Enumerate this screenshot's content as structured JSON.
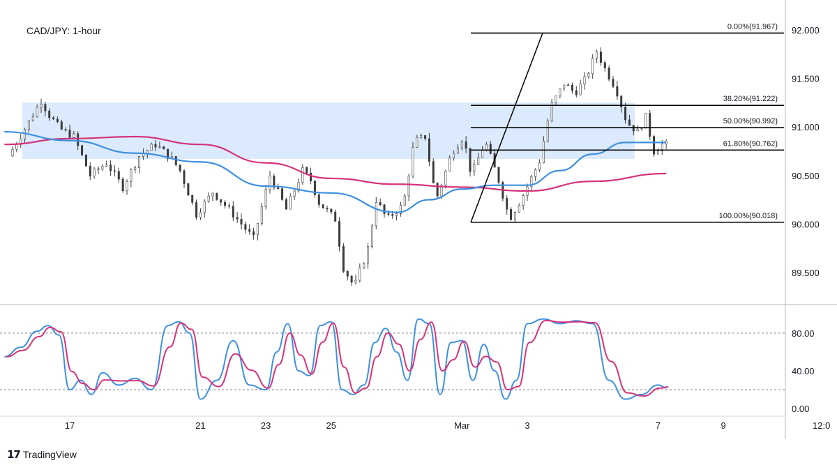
{
  "chart_data": {
    "type": "candlestick",
    "title": "CAD/JPY: 1-hour",
    "price_axis": {
      "ylim": [
        89.17,
        92.25
      ],
      "ticks": [
        92.0,
        91.5,
        91.0,
        90.5,
        90.0,
        89.5
      ],
      "tick_labels": [
        "92.000",
        "91.500",
        "91.000",
        "90.500",
        "90.000",
        "89.500"
      ]
    },
    "oscillator_axis": {
      "ylim": [
        -8,
        108
      ],
      "ticks": [
        80,
        40,
        0
      ],
      "tick_labels": [
        "80.00",
        "40.00",
        "0.00"
      ],
      "dashed_levels": [
        80,
        20
      ]
    },
    "time_axis": {
      "labels": [
        "17",
        "21",
        "23",
        "25",
        "Mar",
        "3",
        "7",
        "9",
        "12:0"
      ],
      "label_dates": [
        "Feb 17",
        "Feb 21",
        "Feb 23",
        "Feb 25",
        "Mar 1",
        "Mar 3",
        "Mar 7",
        "Mar 9",
        "Mar 12"
      ]
    },
    "resistance_zone": {
      "low": 90.67,
      "high": 91.25,
      "color": "#dbeafc"
    },
    "fibonacci": {
      "levels": [
        {
          "label": "0.00%(91.967)",
          "price": 91.967
        },
        {
          "label": "38.20%(91.222)",
          "price": 91.222
        },
        {
          "label": "50.00%(90.992)",
          "price": 90.992
        },
        {
          "label": "61.80%(90.762)",
          "price": 90.762
        },
        {
          "label": "100.00%(90.018)",
          "price": 90.018
        }
      ],
      "swing_low": 90.018,
      "swing_high": 91.967
    },
    "price_path": [
      {
        "date": "Feb 15 06:00",
        "price": 90.7
      },
      {
        "date": "Feb 15 18:00",
        "price": 90.98
      },
      {
        "date": "Feb 16 06:00",
        "price": 91.27
      },
      {
        "date": "Feb 16 12:00",
        "price": 91.12
      },
      {
        "date": "Feb 16 20:00",
        "price": 90.98
      },
      {
        "date": "Feb 17 06:00",
        "price": 90.9
      },
      {
        "date": "Feb 17 18:00",
        "price": 90.5
      },
      {
        "date": "Feb 18 06:00",
        "price": 90.63
      },
      {
        "date": "Feb 18 18:00",
        "price": 90.38
      },
      {
        "date": "Feb 19 06:00",
        "price": 90.7
      },
      {
        "date": "Feb 19 18:00",
        "price": 90.82
      },
      {
        "date": "Feb 20 06:00",
        "price": 90.67
      },
      {
        "date": "Feb 20 12:00",
        "price": 90.55
      },
      {
        "date": "Feb 21 00:00",
        "price": 90.1
      },
      {
        "date": "Feb 21 12:00",
        "price": 90.33
      },
      {
        "date": "Feb 22 00:00",
        "price": 90.15
      },
      {
        "date": "Feb 22 18:00",
        "price": 89.85
      },
      {
        "date": "Feb 23 06:00",
        "price": 90.5
      },
      {
        "date": "Feb 23 18:00",
        "price": 90.15
      },
      {
        "date": "Feb 24 06:00",
        "price": 90.55
      },
      {
        "date": "Feb 24 12:00",
        "price": 90.45
      },
      {
        "date": "Feb 24 18:00",
        "price": 90.22
      },
      {
        "date": "Feb 25 06:00",
        "price": 90.05
      },
      {
        "date": "Feb 25 12:00",
        "price": 89.55
      },
      {
        "date": "Feb 25 20:00",
        "price": 89.35
      },
      {
        "date": "Feb 26 06:00",
        "price": 89.75
      },
      {
        "date": "Feb 26 12:00",
        "price": 90.25
      },
      {
        "date": "Feb 26 20:00",
        "price": 90.05
      },
      {
        "date": "Feb 27 08:00",
        "price": 90.2
      },
      {
        "date": "Feb 27 16:00",
        "price": 90.85
      },
      {
        "date": "Feb 28 00:00",
        "price": 90.9
      },
      {
        "date": "Feb 28 08:00",
        "price": 90.25
      },
      {
        "date": "Feb 28 20:00",
        "price": 90.75
      },
      {
        "date": "Mar 1 04:00",
        "price": 90.9
      },
      {
        "date": "Mar 1 10:00",
        "price": 90.5
      },
      {
        "date": "Mar 1 20:00",
        "price": 90.85
      },
      {
        "date": "Mar 2 06:00",
        "price": 90.45
      },
      {
        "date": "Mar 2 14:00",
        "price": 90.05
      },
      {
        "date": "Mar 3 00:00",
        "price": 90.3
      },
      {
        "date": "Mar 3 12:00",
        "price": 90.65
      },
      {
        "date": "Mar 3 20:00",
        "price": 91.2
      },
      {
        "date": "Mar 4 06:00",
        "price": 91.45
      },
      {
        "date": "Mar 4 14:00",
        "price": 91.35
      },
      {
        "date": "Mar 4 22:00",
        "price": 91.5
      },
      {
        "date": "Mar 5 06:00",
        "price": 91.78
      },
      {
        "date": "Mar 5 12:00",
        "price": 91.6
      },
      {
        "date": "Mar 5 20:00",
        "price": 91.4
      },
      {
        "date": "Mar 6 04:00",
        "price": 91.05
      },
      {
        "date": "Mar 6 12:00",
        "price": 90.95
      },
      {
        "date": "Mar 6 18:00",
        "price": 91.1
      },
      {
        "date": "Mar 7 00:00",
        "price": 90.75
      },
      {
        "date": "Mar 7 06:00",
        "price": 90.82
      }
    ],
    "moving_average_fast": {
      "color": "#3d8fe0",
      "points": [
        {
          "date": "Feb 15 00:00",
          "price": 90.95
        },
        {
          "date": "Feb 17 00:00",
          "price": 90.86
        },
        {
          "date": "Feb 19 00:00",
          "price": 90.73
        },
        {
          "date": "Feb 21 00:00",
          "price": 90.64
        },
        {
          "date": "Feb 23 00:00",
          "price": 90.39
        },
        {
          "date": "Feb 25 00:00",
          "price": 90.32
        },
        {
          "date": "Feb 27 00:00",
          "price": 90.12
        },
        {
          "date": "Feb 28 00:00",
          "price": 90.25
        },
        {
          "date": "Mar 1 00:00",
          "price": 90.36
        },
        {
          "date": "Mar 2 00:00",
          "price": 90.4
        },
        {
          "date": "Mar 3 00:00",
          "price": 90.4
        },
        {
          "date": "Mar 4 00:00",
          "price": 90.55
        },
        {
          "date": "Mar 5 00:00",
          "price": 90.72
        },
        {
          "date": "Mar 6 00:00",
          "price": 90.84
        },
        {
          "date": "Mar 7 06:00",
          "price": 90.84
        }
      ]
    },
    "moving_average_slow": {
      "color": "#d6327a",
      "points": [
        {
          "date": "Feb 15 00:00",
          "price": 90.82
        },
        {
          "date": "Feb 17 00:00",
          "price": 90.88
        },
        {
          "date": "Feb 19 00:00",
          "price": 90.9
        },
        {
          "date": "Feb 21 00:00",
          "price": 90.82
        },
        {
          "date": "Feb 23 00:00",
          "price": 90.63
        },
        {
          "date": "Feb 25 00:00",
          "price": 90.47
        },
        {
          "date": "Feb 27 00:00",
          "price": 90.41
        },
        {
          "date": "Mar 1 00:00",
          "price": 90.38
        },
        {
          "date": "Mar 3 00:00",
          "price": 90.34
        },
        {
          "date": "Mar 5 00:00",
          "price": 90.44
        },
        {
          "date": "Mar 7 06:00",
          "price": 90.52
        }
      ]
    },
    "stochastic": {
      "colors": {
        "k": "#3d8fe0",
        "d": "#d6327a"
      },
      "k": [
        {
          "date": "Feb 15 00:00",
          "value": 55
        },
        {
          "date": "Feb 15 12:00",
          "value": 65
        },
        {
          "date": "Feb 16 00:00",
          "value": 82
        },
        {
          "date": "Feb 16 08:00",
          "value": 88
        },
        {
          "date": "Feb 16 16:00",
          "value": 78
        },
        {
          "date": "Feb 17 00:00",
          "value": 20
        },
        {
          "date": "Feb 17 08:00",
          "value": 30
        },
        {
          "date": "Feb 17 16:00",
          "value": 15
        },
        {
          "date": "Feb 18 00:00",
          "value": 38
        },
        {
          "date": "Feb 18 12:00",
          "value": 25
        },
        {
          "date": "Feb 19 00:00",
          "value": 32
        },
        {
          "date": "Feb 19 12:00",
          "value": 20
        },
        {
          "date": "Feb 20 00:00",
          "value": 88
        },
        {
          "date": "Feb 20 08:00",
          "value": 92
        },
        {
          "date": "Feb 20 16:00",
          "value": 80
        },
        {
          "date": "Feb 21 00:00",
          "value": 10
        },
        {
          "date": "Feb 21 12:00",
          "value": 30
        },
        {
          "date": "Feb 22 00:00",
          "value": 72
        },
        {
          "date": "Feb 22 12:00",
          "value": 25
        },
        {
          "date": "Feb 23 00:00",
          "value": 20
        },
        {
          "date": "Feb 23 08:00",
          "value": 60
        },
        {
          "date": "Feb 23 16:00",
          "value": 90
        },
        {
          "date": "Feb 24 00:00",
          "value": 40
        },
        {
          "date": "Feb 24 08:00",
          "value": 35
        },
        {
          "date": "Feb 24 16:00",
          "value": 88
        },
        {
          "date": "Feb 25 00:00",
          "value": 92
        },
        {
          "date": "Feb 25 08:00",
          "value": 20
        },
        {
          "date": "Feb 25 16:00",
          "value": 15
        },
        {
          "date": "Feb 26 00:00",
          "value": 25
        },
        {
          "date": "Feb 26 08:00",
          "value": 70
        },
        {
          "date": "Feb 26 16:00",
          "value": 85
        },
        {
          "date": "Feb 27 00:00",
          "value": 60
        },
        {
          "date": "Feb 27 08:00",
          "value": 30
        },
        {
          "date": "Feb 27 16:00",
          "value": 95
        },
        {
          "date": "Feb 28 00:00",
          "value": 90
        },
        {
          "date": "Feb 28 08:00",
          "value": 15
        },
        {
          "date": "Feb 28 16:00",
          "value": 70
        },
        {
          "date": "Mar 1 00:00",
          "value": 72
        },
        {
          "date": "Mar 1 08:00",
          "value": 30
        },
        {
          "date": "Mar 1 16:00",
          "value": 68
        },
        {
          "date": "Mar 2 00:00",
          "value": 40
        },
        {
          "date": "Mar 2 08:00",
          "value": 10
        },
        {
          "date": "Mar 2 16:00",
          "value": 30
        },
        {
          "date": "Mar 3 00:00",
          "value": 90
        },
        {
          "date": "Mar 3 12:00",
          "value": 95
        },
        {
          "date": "Mar 4 00:00",
          "value": 90
        },
        {
          "date": "Mar 4 12:00",
          "value": 93
        },
        {
          "date": "Mar 5 00:00",
          "value": 90
        },
        {
          "date": "Mar 5 12:00",
          "value": 30
        },
        {
          "date": "Mar 6 00:00",
          "value": 10
        },
        {
          "date": "Mar 6 12:00",
          "value": 15
        },
        {
          "date": "Mar 7 00:00",
          "value": 25
        },
        {
          "date": "Mar 7 06:00",
          "value": 22
        }
      ]
    }
  },
  "brand": {
    "logo": "17",
    "name": "TradingView"
  }
}
